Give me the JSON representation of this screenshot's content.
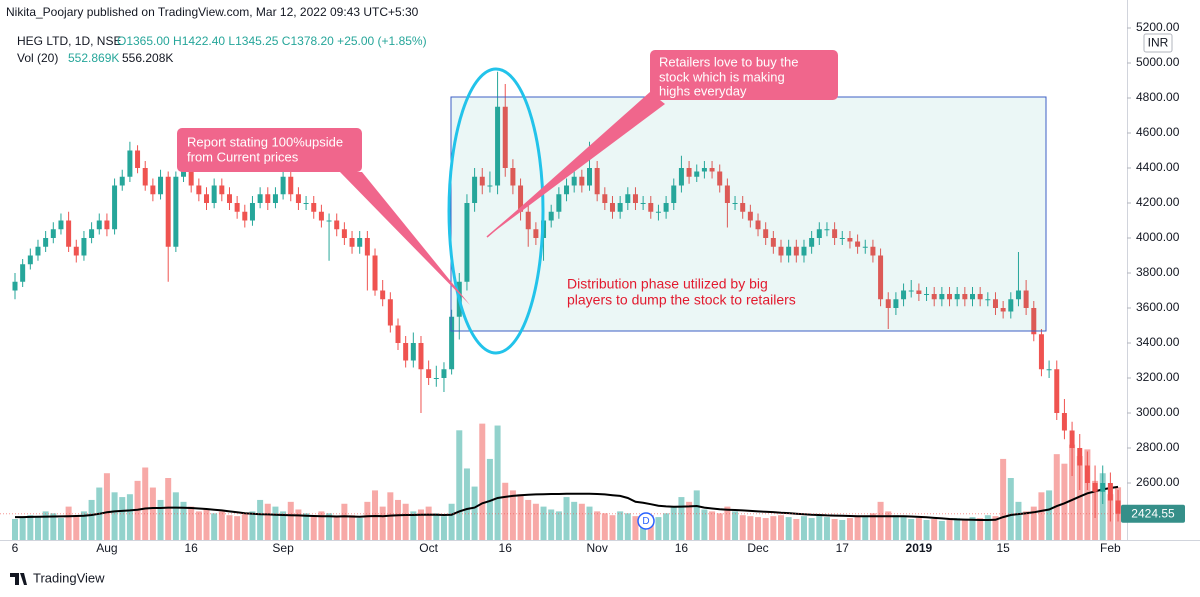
{
  "header": {
    "published": "Nikita_Poojary published on TradingView.com, Mar 12, 2022 09:43 UTC+5:30",
    "symbol": "HEG LTD, 1D, NSE",
    "quote": "O1365.00 H1422.40 L1345.25 C1378.20 +25.00 (+1.85%)",
    "vol_label": "Vol (20)",
    "vol_value": "552.869K",
    "vol_ma_value": "556.208K"
  },
  "footer": {
    "brand": "TradingView"
  },
  "annotations": [
    {
      "lines": [
        "Report stating 100%upside",
        "from Current prices"
      ]
    },
    {
      "lines": [
        "Retailers love to buy the",
        "stock which is making",
        "highs everyday"
      ]
    },
    {
      "lines": [
        "Distribution phase utilized by big",
        "players to dump the stock to retailers"
      ]
    }
  ],
  "chart_data": {
    "type": "candlestick",
    "currency": "INR",
    "dividend_marker": "D",
    "up_color": "#26a69a",
    "down_color": "#ef5350",
    "ma_color": "#000000",
    "grid": false,
    "ylim": [
      2300,
      5200
    ],
    "yticks": [
      {
        "value": 2600,
        "label": "2600.00"
      },
      {
        "value": 2800,
        "label": "2800.00"
      },
      {
        "value": 3000,
        "label": "3000.00"
      },
      {
        "value": 3200,
        "label": "3200.00"
      },
      {
        "value": 3400,
        "label": "3400.00"
      },
      {
        "value": 3600,
        "label": "3600.00"
      },
      {
        "value": 3800,
        "label": "3800.00"
      },
      {
        "value": 4000,
        "label": "4000.00"
      },
      {
        "value": 4200,
        "label": "4200.00"
      },
      {
        "value": 4400,
        "label": "4400.00"
      },
      {
        "value": 4600,
        "label": "4600.00"
      },
      {
        "value": 4800,
        "label": "4800.00"
      },
      {
        "value": 5000,
        "label": "5000.00"
      },
      {
        "value": 5200,
        "label": "5200.00"
      }
    ],
    "volume_lim": [
      0,
      1300000
    ],
    "categories": [
      "6",
      null,
      null,
      null,
      null,
      null,
      null,
      null,
      null,
      null,
      null,
      null,
      "Aug",
      null,
      null,
      null,
      null,
      null,
      null,
      null,
      null,
      null,
      null,
      "16",
      null,
      null,
      null,
      null,
      null,
      null,
      null,
      null,
      null,
      null,
      null,
      "Sep",
      null,
      null,
      null,
      null,
      null,
      null,
      null,
      null,
      null,
      null,
      null,
      null,
      null,
      null,
      null,
      null,
      null,
      null,
      "Oct",
      null,
      null,
      null,
      null,
      null,
      null,
      null,
      null,
      null,
      "16",
      null,
      null,
      null,
      null,
      null,
      null,
      null,
      null,
      null,
      null,
      null,
      "Nov",
      null,
      null,
      null,
      null,
      null,
      null,
      null,
      null,
      null,
      null,
      "16",
      null,
      null,
      null,
      null,
      null,
      null,
      null,
      null,
      null,
      "Dec",
      null,
      null,
      null,
      null,
      null,
      null,
      null,
      null,
      null,
      null,
      "17",
      null,
      null,
      null,
      null,
      null,
      null,
      null,
      null,
      null,
      "2019",
      null,
      null,
      null,
      null,
      null,
      null,
      null,
      null,
      null,
      null,
      "15",
      null,
      null,
      null,
      null,
      null,
      null,
      null,
      null,
      null,
      null,
      null,
      null,
      null,
      "Feb",
      null
    ],
    "open": [
      3700,
      3750,
      3850,
      3900,
      3950,
      4000,
      4050,
      4100,
      3950,
      3900,
      4000,
      4050,
      4100,
      4050,
      4300,
      4350,
      4500,
      4400,
      4300,
      4250,
      4350,
      3950,
      4350,
      4400,
      4300,
      4250,
      4200,
      4300,
      4250,
      4200,
      4150,
      4100,
      4200,
      4250,
      4200,
      4250,
      4350,
      4250,
      4200,
      4200,
      4150,
      4100,
      4100,
      4050,
      4000,
      3950,
      4000,
      3900,
      3700,
      3650,
      3500,
      3400,
      3300,
      3400,
      3250,
      3200,
      3200,
      3250,
      3550,
      3750,
      4200,
      4350,
      4300,
      4300,
      4750,
      4400,
      4300,
      4150,
      4050,
      4000,
      4100,
      4150,
      4250,
      4300,
      4350,
      4300,
      4400,
      4250,
      4200,
      4150,
      4200,
      4250,
      4200,
      4200,
      4150,
      4150,
      4200,
      4300,
      4400,
      4350,
      4380,
      4400,
      4380,
      4300,
      4200,
      4200,
      4150,
      4100,
      4050,
      4000,
      3950,
      3900,
      3950,
      3900,
      3950,
      4000,
      4050,
      4050,
      4000,
      4000,
      3980,
      3950,
      3950,
      3900,
      3650,
      3600,
      3650,
      3700,
      3700,
      3680,
      3680,
      3650,
      3680,
      3650,
      3680,
      3650,
      3680,
      3650,
      3650,
      3600,
      3580,
      3650,
      3700,
      3600,
      3450,
      3250,
      3250,
      3000,
      2900,
      2800,
      2700,
      2600,
      2550,
      2600,
      2500
    ],
    "high": [
      3800,
      3880,
      3940,
      3990,
      4040,
      4090,
      4140,
      4150,
      3990,
      4040,
      4090,
      4140,
      4140,
      4340,
      4390,
      4550,
      4530,
      4440,
      4340,
      4390,
      4380,
      4380,
      4440,
      4440,
      4340,
      4290,
      4340,
      4340,
      4290,
      4240,
      4190,
      4240,
      4290,
      4290,
      4290,
      4390,
      4390,
      4290,
      4240,
      4240,
      4190,
      4140,
      4140,
      4090,
      4040,
      4040,
      4040,
      3940,
      3760,
      3690,
      3540,
      3440,
      3460,
      3440,
      3300,
      3270,
      3290,
      3590,
      3800,
      4250,
      4400,
      4400,
      4380,
      4950,
      4880,
      4450,
      4340,
      4190,
      4090,
      4140,
      4190,
      4290,
      4340,
      4390,
      4390,
      4550,
      4440,
      4290,
      4240,
      4240,
      4290,
      4290,
      4240,
      4240,
      4190,
      4240,
      4340,
      4470,
      4440,
      4420,
      4440,
      4440,
      4420,
      4340,
      4240,
      4240,
      4190,
      4140,
      4090,
      4040,
      3990,
      3990,
      3990,
      3990,
      4040,
      4090,
      4090,
      4090,
      4040,
      4040,
      4020,
      3990,
      3990,
      3940,
      3690,
      3690,
      3740,
      3760,
      3740,
      3720,
      3720,
      3720,
      3720,
      3720,
      3720,
      3720,
      3720,
      3690,
      3690,
      3640,
      3690,
      3920,
      3760,
      3640,
      3480,
      3300,
      3300,
      3080,
      2950,
      2880,
      2780,
      2700,
      2700,
      2660,
      2560
    ],
    "low": [
      3650,
      3720,
      3820,
      3870,
      3920,
      3970,
      4020,
      3920,
      3860,
      3870,
      3970,
      4020,
      4010,
      4020,
      4270,
      4320,
      4370,
      4270,
      4210,
      4220,
      3750,
      3920,
      4320,
      4260,
      4210,
      4160,
      4170,
      4210,
      4160,
      4110,
      4060,
      4070,
      4170,
      4160,
      4170,
      4220,
      4210,
      4160,
      4160,
      4110,
      4060,
      3870,
      4010,
      3960,
      3910,
      3910,
      3700,
      3670,
      3610,
      3460,
      3360,
      3260,
      3260,
      3000,
      3160,
      3150,
      3120,
      3220,
      3420,
      3700,
      4150,
      4250,
      4260,
      4250,
      4350,
      4250,
      4100,
      3950,
      3960,
      3870,
      4060,
      4110,
      4210,
      4260,
      4260,
      4270,
      4210,
      4160,
      4110,
      4110,
      4160,
      4160,
      4160,
      4110,
      4100,
      4110,
      4160,
      4260,
      4310,
      4320,
      4340,
      4340,
      4260,
      4060,
      4160,
      4110,
      4060,
      4010,
      3960,
      3910,
      3860,
      3860,
      3860,
      3860,
      3910,
      3960,
      4010,
      3960,
      3960,
      3940,
      3910,
      3910,
      3860,
      3610,
      3480,
      3560,
      3610,
      3660,
      3640,
      3640,
      3610,
      3610,
      3610,
      3610,
      3610,
      3610,
      3610,
      3610,
      3560,
      3540,
      3540,
      3610,
      3560,
      3410,
      3210,
      3200,
      2960,
      2850,
      2640,
      2560,
      2560,
      2400,
      2480,
      2380,
      2380
    ],
    "close": [
      3750,
      3850,
      3900,
      3950,
      4000,
      4050,
      4100,
      3950,
      3900,
      4000,
      4050,
      4100,
      4050,
      4300,
      4350,
      4500,
      4400,
      4300,
      4250,
      4350,
      3950,
      4350,
      4400,
      4300,
      4250,
      4200,
      4300,
      4250,
      4200,
      4150,
      4100,
      4200,
      4250,
      4200,
      4250,
      4350,
      4250,
      4200,
      4200,
      4150,
      4100,
      4100,
      4050,
      4000,
      3950,
      4000,
      3900,
      3700,
      3650,
      3500,
      3400,
      3300,
      3400,
      3250,
      3200,
      3200,
      3250,
      3550,
      3750,
      4200,
      4350,
      4300,
      4300,
      4750,
      4400,
      4300,
      4150,
      4050,
      4000,
      4100,
      4150,
      4250,
      4300,
      4350,
      4300,
      4400,
      4250,
      4200,
      4150,
      4200,
      4250,
      4200,
      4200,
      4150,
      4150,
      4200,
      4300,
      4400,
      4350,
      4380,
      4400,
      4380,
      4300,
      4200,
      4200,
      4150,
      4100,
      4050,
      4000,
      3950,
      3900,
      3950,
      3900,
      3950,
      4000,
      4050,
      4050,
      4000,
      4000,
      3980,
      3950,
      3950,
      3900,
      3650,
      3600,
      3650,
      3700,
      3700,
      3680,
      3680,
      3650,
      3680,
      3650,
      3680,
      3650,
      3680,
      3650,
      3650,
      3600,
      3580,
      3650,
      3700,
      3600,
      3450,
      3250,
      3250,
      3000,
      2900,
      2800,
      2700,
      2600,
      2550,
      2600,
      2500,
      2424.55
    ],
    "volume": [
      220000,
      240000,
      260000,
      250000,
      300000,
      280000,
      230000,
      350000,
      260000,
      300000,
      420000,
      550000,
      700000,
      500000,
      450000,
      480000,
      620000,
      760000,
      550000,
      420000,
      650000,
      500000,
      400000,
      350000,
      300000,
      320000,
      280000,
      300000,
      260000,
      250000,
      270000,
      300000,
      420000,
      380000,
      350000,
      300000,
      400000,
      320000,
      280000,
      260000,
      300000,
      280000,
      250000,
      380000,
      260000,
      230000,
      400000,
      520000,
      350000,
      500000,
      420000,
      380000,
      300000,
      320000,
      350000,
      280000,
      250000,
      380000,
      1150000,
      750000,
      560000,
      1220000,
      850000,
      1200000,
      600000,
      520000,
      480000,
      420000,
      380000,
      350000,
      320000,
      300000,
      450000,
      400000,
      380000,
      350000,
      300000,
      280000,
      260000,
      300000,
      280000,
      250000,
      230000,
      260000,
      240000,
      280000,
      350000,
      450000,
      400000,
      520000,
      320000,
      300000,
      280000,
      350000,
      300000,
      260000,
      250000,
      240000,
      230000,
      250000,
      260000,
      240000,
      220000,
      250000,
      230000,
      260000,
      240000,
      220000,
      210000,
      230000,
      250000,
      240000,
      280000,
      400000,
      300000,
      260000,
      240000,
      220000,
      230000,
      210000,
      220000,
      200000,
      210000,
      230000,
      220000,
      240000,
      230000,
      260000,
      250000,
      850000,
      650000,
      400000,
      300000,
      350000,
      500000,
      520000,
      900000,
      800000,
      1000000,
      880000,
      950000,
      620000,
      700000,
      480000,
      552869
    ],
    "volume_ma": [
      240000,
      240000,
      242000,
      243000,
      245000,
      246000,
      247000,
      250000,
      252000,
      255000,
      262000,
      275000,
      290000,
      300000,
      305000,
      310000,
      318000,
      330000,
      335000,
      335000,
      340000,
      340000,
      338000,
      335000,
      330000,
      325000,
      318000,
      310000,
      300000,
      290000,
      280000,
      275000,
      270000,
      268000,
      265000,
      262000,
      260000,
      258000,
      255000,
      252000,
      250000,
      248000,
      246000,
      248000,
      246000,
      244000,
      248000,
      252000,
      250000,
      256000,
      260000,
      262000,
      262000,
      264000,
      266000,
      264000,
      262000,
      265000,
      300000,
      325000,
      340000,
      385000,
      410000,
      440000,
      452000,
      462000,
      470000,
      475000,
      478000,
      480000,
      482000,
      482000,
      484000,
      484000,
      485000,
      484000,
      482000,
      478000,
      470000,
      462000,
      440000,
      400000,
      390000,
      375000,
      360000,
      352000,
      348000,
      350000,
      352000,
      356000,
      340000,
      330000,
      322000,
      318000,
      315000,
      310000,
      305000,
      300000,
      296000,
      292000,
      286000,
      282000,
      276000,
      270000,
      265000,
      262000,
      258000,
      256000,
      254000,
      252000,
      250000,
      248000,
      248000,
      250000,
      250000,
      250000,
      248000,
      246000,
      242000,
      238000,
      232000,
      226000,
      220000,
      216000,
      214000,
      212000,
      210000,
      210000,
      212000,
      240000,
      262000,
      272000,
      280000,
      290000,
      305000,
      320000,
      355000,
      385000,
      420000,
      455000,
      490000,
      510000,
      530000,
      545000,
      556208
    ]
  }
}
